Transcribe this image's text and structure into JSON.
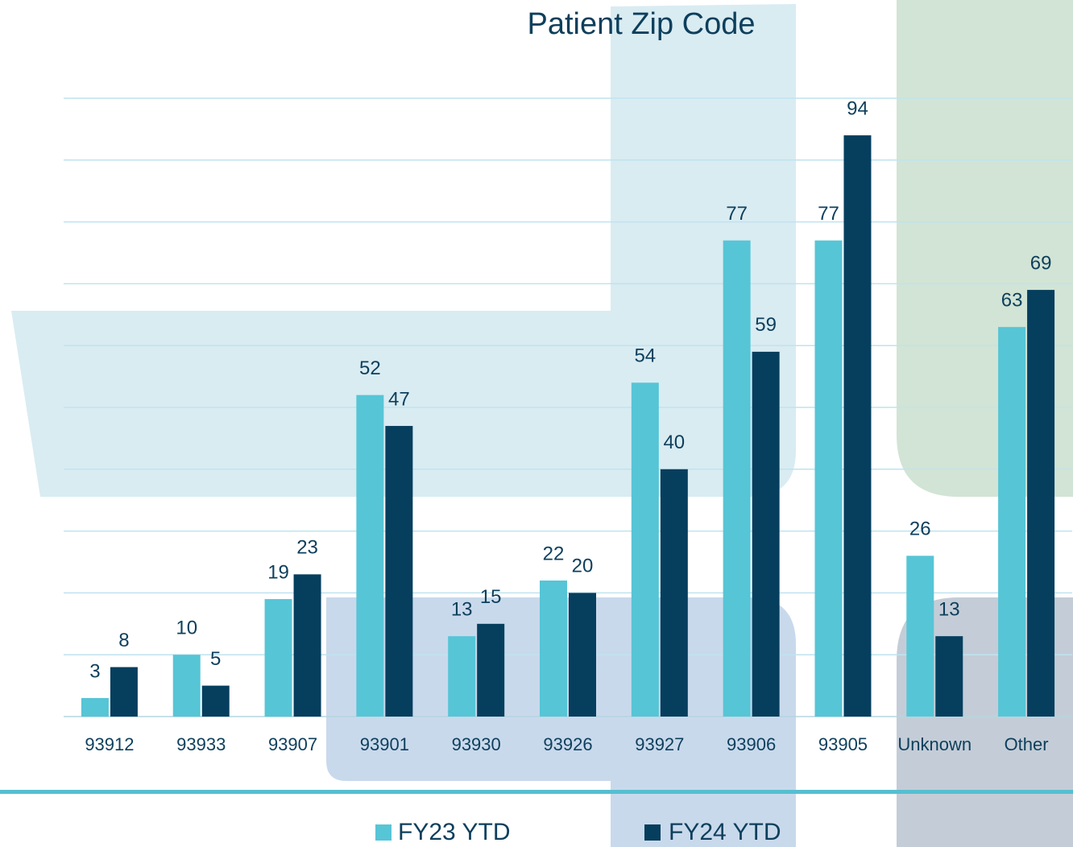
{
  "chart_data": {
    "type": "bar",
    "title": "Patient Zip Code",
    "categories": [
      "93912",
      "93933",
      "93907",
      "93901",
      "93930",
      "93926",
      "93927",
      "93906",
      "93905",
      "Unknown",
      "Other"
    ],
    "series": [
      {
        "name": "FY23 YTD",
        "color": "#56c5d6",
        "values": [
          3,
          10,
          19,
          52,
          13,
          22,
          54,
          77,
          77,
          26,
          63
        ]
      },
      {
        "name": "FY24 YTD",
        "color": "#063e5e",
        "values": [
          8,
          5,
          23,
          47,
          15,
          20,
          40,
          59,
          94,
          13,
          69
        ]
      }
    ],
    "ylim": [
      0,
      100
    ],
    "yticks": [
      0,
      10,
      20,
      30,
      40,
      50,
      60,
      70,
      80,
      90,
      100
    ],
    "grid": true,
    "legend": "bottom"
  }
}
